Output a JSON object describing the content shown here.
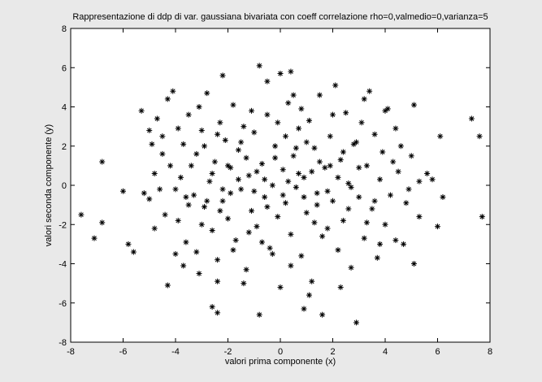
{
  "chart_data": {
    "type": "scatter",
    "title": "Rappresentazione di ddp di var. gaussiana bivariata con coeff correlazione rho=0,valmedio=0,varianza=5",
    "xlabel": "valori prima componente (x)",
    "ylabel": "valori seconda componente (y)",
    "xlim": [
      -8,
      8
    ],
    "ylim": [
      -8,
      8
    ],
    "xticks": [
      -8,
      -6,
      -4,
      -2,
      0,
      2,
      4,
      6,
      8
    ],
    "yticks": [
      -8,
      -6,
      -4,
      -2,
      0,
      2,
      4,
      6,
      8
    ],
    "xtick_labels": [
      "-8",
      "-6",
      "-4",
      "-2",
      "0",
      "2",
      "4",
      "6",
      "8"
    ],
    "ytick_labels": [
      "-8",
      "-6",
      "-4",
      "-2",
      "0",
      "2",
      "4",
      "6",
      "8"
    ],
    "grid": false,
    "marker": "asterisk",
    "marker_color": "#000000",
    "background": "#ffffff",
    "series": [
      {
        "points": [
          [
            -7.6,
            -1.5
          ],
          [
            -7.1,
            -2.7
          ],
          [
            -6.8,
            1.2
          ],
          [
            -6.8,
            -1.9
          ],
          [
            -6.0,
            -0.3
          ],
          [
            -5.8,
            -3.0
          ],
          [
            -5.6,
            -3.4
          ],
          [
            -5.3,
            3.8
          ],
          [
            -5.2,
            -0.4
          ],
          [
            -5.0,
            -0.7
          ],
          [
            -4.8,
            0.6
          ],
          [
            -4.6,
            -0.2
          ],
          [
            -4.5,
            2.5
          ],
          [
            -4.4,
            -1.5
          ],
          [
            -4.3,
            4.4
          ],
          [
            -4.3,
            -5.1
          ],
          [
            -4.2,
            1.0
          ],
          [
            -4.1,
            4.8
          ],
          [
            -4.0,
            -3.5
          ],
          [
            -3.9,
            -1.8
          ],
          [
            -3.8,
            0.4
          ],
          [
            -3.7,
            2.1
          ],
          [
            -3.6,
            -2.9
          ],
          [
            -3.5,
            3.6
          ],
          [
            -3.3,
            -0.5
          ],
          [
            -3.2,
            1.6
          ],
          [
            -3.1,
            -4.5
          ],
          [
            -3.0,
            2.8
          ],
          [
            -2.9,
            -1.1
          ],
          [
            -2.8,
            4.7
          ],
          [
            -2.7,
            0.2
          ],
          [
            -2.6,
            -2.3
          ],
          [
            -2.5,
            1.2
          ],
          [
            -2.4,
            -3.8
          ],
          [
            -2.3,
            3.2
          ],
          [
            -2.2,
            -0.8
          ],
          [
            -2.1,
            2.3
          ],
          [
            -2.0,
            -1.7
          ],
          [
            -1.9,
            0.9
          ],
          [
            -1.8,
            4.1
          ],
          [
            -1.7,
            -2.8
          ],
          [
            -1.6,
            1.8
          ],
          [
            -1.5,
            -0.2
          ],
          [
            -1.4,
            3.0
          ],
          [
            -1.3,
            -4.3
          ],
          [
            -1.2,
            0.5
          ],
          [
            -1.1,
            -1.3
          ],
          [
            -1.0,
            2.7
          ],
          [
            -0.9,
            -2.1
          ],
          [
            -0.8,
            6.1
          ],
          [
            -0.8,
            -6.6
          ],
          [
            -0.7,
            1.1
          ],
          [
            -0.6,
            -0.6
          ],
          [
            -0.5,
            3.6
          ],
          [
            -0.4,
            -3.2
          ],
          [
            -0.3,
            0.0
          ],
          [
            -0.2,
            2.0
          ],
          [
            -0.1,
            -1.6
          ],
          [
            0.0,
            5.7
          ],
          [
            0.0,
            -5.2
          ],
          [
            0.1,
            0.8
          ],
          [
            0.2,
            -0.9
          ],
          [
            0.3,
            4.2
          ],
          [
            0.4,
            -2.5
          ],
          [
            0.5,
            1.5
          ],
          [
            0.6,
            -0.1
          ],
          [
            0.7,
            2.9
          ],
          [
            0.8,
            -3.6
          ],
          [
            0.9,
            0.4
          ],
          [
            1.0,
            -1.4
          ],
          [
            1.1,
            3.3
          ],
          [
            1.2,
            -4.9
          ],
          [
            1.3,
            1.9
          ],
          [
            1.4,
            -0.4
          ],
          [
            1.5,
            4.6
          ],
          [
            1.6,
            -6.6
          ],
          [
            1.7,
            0.9
          ],
          [
            1.8,
            -2.2
          ],
          [
            1.9,
            2.5
          ],
          [
            2.0,
            -0.8
          ],
          [
            2.1,
            5.1
          ],
          [
            2.2,
            -3.3
          ],
          [
            2.3,
            1.3
          ],
          [
            2.4,
            -1.8
          ],
          [
            2.5,
            3.7
          ],
          [
            2.6,
            0.1
          ],
          [
            2.7,
            -4.2
          ],
          [
            2.8,
            2.1
          ],
          [
            2.9,
            -7.0
          ],
          [
            3.0,
            -0.6
          ],
          [
            3.1,
            3.2
          ],
          [
            3.2,
            -2.7
          ],
          [
            3.3,
            1.0
          ],
          [
            3.4,
            4.8
          ],
          [
            3.5,
            -1.2
          ],
          [
            3.6,
            2.6
          ],
          [
            3.7,
            -3.7
          ],
          [
            3.8,
            0.3
          ],
          [
            3.9,
            1.7
          ],
          [
            4.0,
            -2.0
          ],
          [
            4.1,
            3.9
          ],
          [
            4.2,
            -0.5
          ],
          [
            4.3,
            1.2
          ],
          [
            4.4,
            -2.8
          ],
          [
            4.5,
            0.7
          ],
          [
            4.6,
            2.0
          ],
          [
            4.8,
            -0.9
          ],
          [
            5.0,
            1.5
          ],
          [
            5.1,
            4.1
          ],
          [
            5.1,
            -4.0
          ],
          [
            5.3,
            -1.6
          ],
          [
            5.6,
            0.6
          ],
          [
            5.8,
            0.3
          ],
          [
            6.0,
            -2.1
          ],
          [
            6.1,
            2.5
          ],
          [
            6.2,
            -0.6
          ],
          [
            7.3,
            3.4
          ],
          [
            7.6,
            2.5
          ],
          [
            7.7,
            -1.6
          ],
          [
            -4.0,
            -0.2
          ],
          [
            -3.5,
            -1.0
          ],
          [
            -3.0,
            -2.0
          ],
          [
            -2.6,
            0.6
          ],
          [
            -2.2,
            -0.2
          ],
          [
            -1.9,
            -0.4
          ],
          [
            -1.6,
            0.3
          ],
          [
            -1.2,
            -2.4
          ],
          [
            -0.9,
            0.7
          ],
          [
            -0.5,
            -1.1
          ],
          [
            -0.2,
            1.4
          ],
          [
            0.3,
            0.2
          ],
          [
            0.6,
            1.9
          ],
          [
            0.9,
            -0.6
          ],
          [
            1.2,
            0.7
          ],
          [
            1.5,
            1.2
          ],
          [
            1.8,
            -0.3
          ],
          [
            2.2,
            0.4
          ],
          [
            2.6,
            -1.2
          ],
          [
            3.0,
            0.9
          ],
          [
            -3.4,
            1.0
          ],
          [
            -2.8,
            -0.8
          ],
          [
            -2.4,
            2.6
          ],
          [
            -1.8,
            -3.3
          ],
          [
            -1.3,
            1.4
          ],
          [
            -0.7,
            -2.9
          ],
          [
            -0.1,
            3.2
          ],
          [
            0.4,
            -4.1
          ],
          [
            1.0,
            2.2
          ],
          [
            1.6,
            -2.6
          ],
          [
            2.0,
            3.6
          ],
          [
            2.7,
            -0.1
          ],
          [
            3.3,
            -1.9
          ],
          [
            -3.9,
            2.9
          ],
          [
            -3.2,
            -3.4
          ],
          [
            -2.0,
            1.0
          ],
          [
            -1.0,
            -0.3
          ],
          [
            -0.3,
            -3.5
          ],
          [
            0.2,
            2.5
          ],
          [
            0.8,
            3.9
          ],
          [
            1.4,
            -1.0
          ],
          [
            2.4,
            1.7
          ],
          [
            3.6,
            -0.8
          ],
          [
            4.4,
            2.9
          ],
          [
            -4.8,
            -2.2
          ],
          [
            -4.5,
            1.6
          ],
          [
            -2.3,
            -1.3
          ],
          [
            -1.5,
            2.2
          ],
          [
            -0.6,
            0.3
          ],
          [
            0.1,
            -0.5
          ],
          [
            0.7,
            0.6
          ],
          [
            1.3,
            -1.9
          ],
          [
            1.9,
            1.0
          ],
          [
            2.9,
            2.2
          ],
          [
            3.8,
            -3.0
          ],
          [
            4.9,
            -0.2
          ],
          [
            -3.6,
            -0.6
          ],
          [
            -2.9,
            2.0
          ],
          [
            -1.1,
            3.8
          ],
          [
            0.5,
            4.6
          ],
          [
            1.1,
            -5.6
          ],
          [
            2.3,
            -5.2
          ],
          [
            -2.4,
            -4.9
          ],
          [
            -2.6,
            -6.2
          ],
          [
            -2.4,
            -6.5
          ],
          [
            -0.5,
            5.3
          ],
          [
            0.4,
            5.8
          ],
          [
            -2.2,
            5.6
          ],
          [
            -3.7,
            -4.1
          ],
          [
            4.0,
            3.8
          ],
          [
            4.7,
            -3.0
          ],
          [
            5.3,
            0.2
          ],
          [
            -5.0,
            2.8
          ],
          [
            -4.9,
            2.1
          ],
          [
            -4.7,
            3.4
          ],
          [
            -1.4,
            -5.0
          ],
          [
            0.9,
            -6.3
          ],
          [
            3.2,
            4.4
          ],
          [
            -3.1,
            4.0
          ]
        ]
      }
    ]
  }
}
